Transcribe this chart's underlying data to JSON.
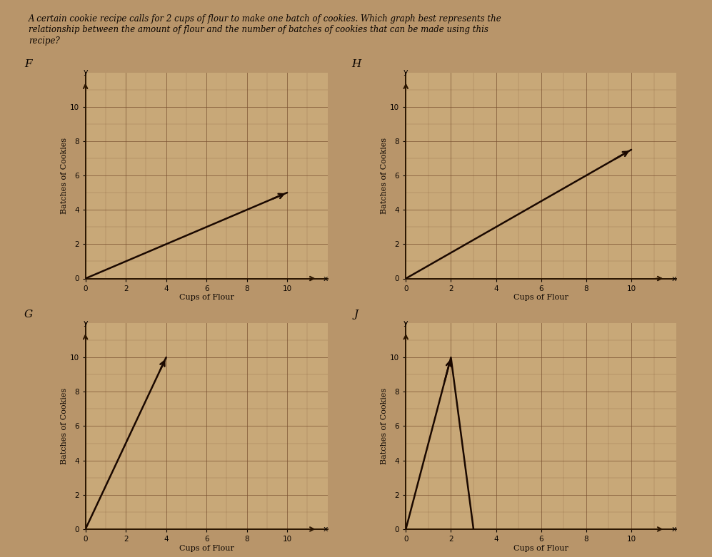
{
  "title_line1": "A certain cookie recipe calls for 2 cups of flour to make one batch of cookies. Which graph best represents the",
  "title_line2": "relationship between the amount of flour and the number of batches of cookies that can be made using this",
  "title_line3": "recipe?",
  "background_color": "#b8956a",
  "grid_color": "#7a5030",
  "axis_color": "#2a1500",
  "line_color": "#1a0800",
  "text_color": "#0a0400",
  "graph_bg": "#c8a878",
  "graphs": {
    "F": {
      "label": "F",
      "line_x": [
        0,
        10
      ],
      "line_y": [
        0,
        5
      ],
      "arrow": true,
      "xlabel": "Cups of Flour",
      "ylabel": "Batches of Cookies"
    },
    "H": {
      "label": "H",
      "line_x": [
        0,
        10
      ],
      "line_y": [
        0,
        7.5
      ],
      "arrow": true,
      "xlabel": "Cups of Flour",
      "ylabel": "Batches of Cookies"
    },
    "G": {
      "label": "G",
      "line_x": [
        0,
        4
      ],
      "line_y": [
        0,
        10
      ],
      "arrow": true,
      "xlabel": "Cups of Flour",
      "ylabel": "Batches of Cookies"
    },
    "J": {
      "label": "J",
      "line_x": [
        0,
        2,
        3
      ],
      "line_y": [
        0,
        10,
        0
      ],
      "arrow": false,
      "arrow_at_peak": true,
      "xlabel": "Cups of Flour",
      "ylabel": "Batches of Cookies"
    }
  },
  "xlim": [
    0,
    12
  ],
  "ylim": [
    0,
    12
  ],
  "xticks": [
    0,
    2,
    4,
    6,
    8,
    10
  ],
  "yticks": [
    0,
    2,
    4,
    6,
    8,
    10
  ]
}
